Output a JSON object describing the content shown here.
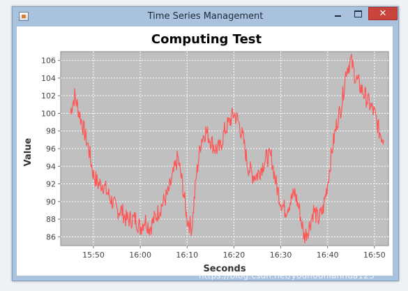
{
  "window": {
    "title": "Time Series Management",
    "close_glyph": "✕",
    "icons": [
      "java-app-icon",
      "minimize-icon",
      "maximize-icon",
      "close-icon"
    ]
  },
  "chart_data": {
    "type": "line",
    "title": "Computing Test",
    "xlabel": "Seconds",
    "ylabel": "Value",
    "x_ticks": [
      "15:50",
      "16:00",
      "16:10",
      "16:20",
      "16:30",
      "16:40",
      "16:50"
    ],
    "y_ticks": [
      86,
      88,
      90,
      92,
      94,
      96,
      98,
      100,
      102,
      104,
      106
    ],
    "xlim": [
      "15:43",
      "16:53"
    ],
    "ylim": [
      85,
      107
    ],
    "grid": true,
    "legend": "none",
    "plot_background": "#c0c0c0",
    "series": [
      {
        "color": "#ff5555",
        "x": [
          "15:45",
          "15:46",
          "15:47",
          "15:48",
          "15:49",
          "15:50",
          "15:51",
          "15:52",
          "15:53",
          "15:54",
          "15:55",
          "15:56",
          "15:57",
          "15:58",
          "15:59",
          "16:00",
          "16:01",
          "16:02",
          "16:03",
          "16:04",
          "16:05",
          "16:06",
          "16:07",
          "16:08",
          "16:09",
          "16:10",
          "16:11",
          "16:12",
          "16:13",
          "16:14",
          "16:15",
          "16:16",
          "16:17",
          "16:18",
          "16:19",
          "16:20",
          "16:21",
          "16:22",
          "16:23",
          "16:24",
          "16:25",
          "16:26",
          "16:27",
          "16:28",
          "16:29",
          "16:30",
          "16:31",
          "16:32",
          "16:33",
          "16:34",
          "16:35",
          "16:36",
          "16:37",
          "16:38",
          "16:39",
          "16:40",
          "16:41",
          "16:42",
          "16:43",
          "16:44",
          "16:45",
          "16:46",
          "16:47",
          "16:48",
          "16:49",
          "16:50",
          "16:51",
          "16:52"
        ],
        "values": [
          100,
          102,
          100,
          98,
          96,
          93,
          92,
          92,
          91,
          90,
          89,
          89,
          88,
          88,
          88,
          87,
          88,
          87,
          88,
          89,
          90,
          91,
          93,
          95,
          92,
          88,
          87,
          93,
          97,
          98,
          97,
          96,
          96,
          98,
          99,
          100,
          99,
          97,
          94,
          93,
          93,
          94,
          95,
          95,
          92,
          90,
          89,
          90,
          91,
          89,
          86,
          87,
          89,
          88,
          89,
          92,
          96,
          99,
          101,
          105,
          106,
          104,
          103,
          102,
          101,
          100,
          98,
          97
        ]
      }
    ]
  },
  "watermark": "https://blog.csdn.net/youhounianhua123"
}
